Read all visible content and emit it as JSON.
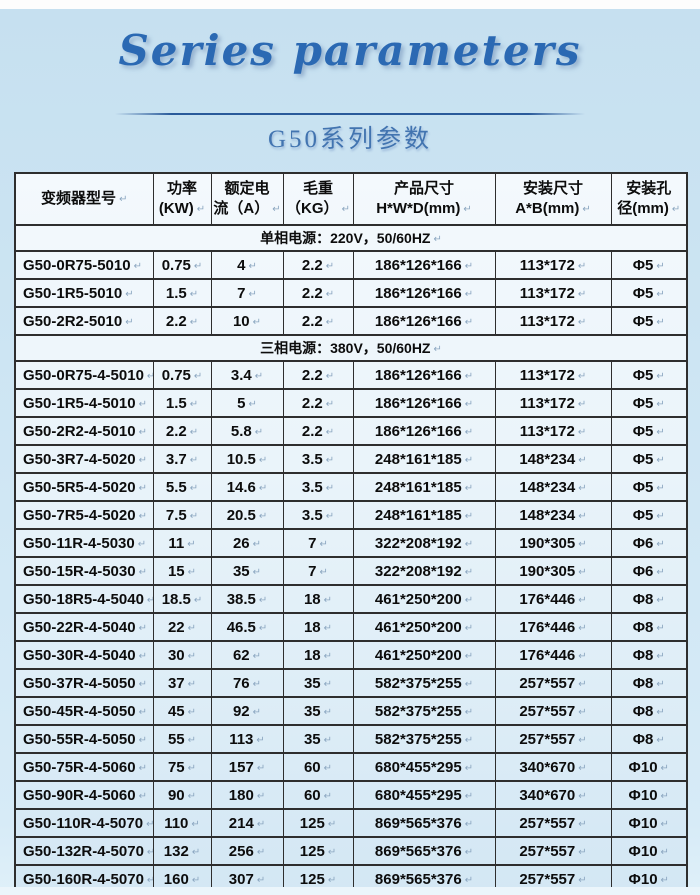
{
  "header": {
    "script_title": "Series parameters",
    "title": "G50系列参数"
  },
  "marks": {
    "return": "↵"
  },
  "colors": {
    "accent_blue": "#2b69b3",
    "title_blue": "#4274b0",
    "divider_blue": "#2a5a9a",
    "table_border": "#2e2e2e",
    "paragraph_mark": "#8ba6c0",
    "background_top": "#c6e0f0",
    "background_bottom": "#d7ebf7"
  },
  "table": {
    "columns": [
      {
        "line1": "变频器型号",
        "line2": ""
      },
      {
        "line1": "功率",
        "line2": "(KW)"
      },
      {
        "line1": "额定电",
        "line2": "流（A）"
      },
      {
        "line1": "毛重",
        "line2": "（KG）"
      },
      {
        "line1": "产品尺寸",
        "line2": "H*W*D(mm)"
      },
      {
        "line1": "安装尺寸",
        "line2": "A*B(mm)"
      },
      {
        "line1": "安装孔",
        "line2": "径(mm)"
      }
    ],
    "sections": [
      {
        "title": "单相电源：220V，50/60HZ",
        "rows": [
          [
            "G50-0R75-5010",
            "0.75",
            "4",
            "2.2",
            "186*126*166",
            "113*172",
            "Φ5"
          ],
          [
            "G50-1R5-5010",
            "1.5",
            "7",
            "2.2",
            "186*126*166",
            "113*172",
            "Φ5"
          ],
          [
            "G50-2R2-5010",
            "2.2",
            "10",
            "2.2",
            "186*126*166",
            "113*172",
            "Φ5"
          ]
        ]
      },
      {
        "title": "三相电源：380V，50/60HZ",
        "rows": [
          [
            "G50-0R75-4-5010",
            "0.75",
            "3.4",
            "2.2",
            "186*126*166",
            "113*172",
            "Φ5"
          ],
          [
            "G50-1R5-4-5010",
            "1.5",
            "5",
            "2.2",
            "186*126*166",
            "113*172",
            "Φ5"
          ],
          [
            "G50-2R2-4-5010",
            "2.2",
            "5.8",
            "2.2",
            "186*126*166",
            "113*172",
            "Φ5"
          ],
          [
            "G50-3R7-4-5020",
            "3.7",
            "10.5",
            "3.5",
            "248*161*185",
            "148*234",
            "Φ5"
          ],
          [
            "G50-5R5-4-5020",
            "5.5",
            "14.6",
            "3.5",
            "248*161*185",
            "148*234",
            "Φ5"
          ],
          [
            "G50-7R5-4-5020",
            "7.5",
            "20.5",
            "3.5",
            "248*161*185",
            "148*234",
            "Φ5"
          ],
          [
            "G50-11R-4-5030",
            "11",
            "26",
            "7",
            "322*208*192",
            "190*305",
            "Φ6"
          ],
          [
            "G50-15R-4-5030",
            "15",
            "35",
            "7",
            "322*208*192",
            "190*305",
            "Φ6"
          ],
          [
            "G50-18R5-4-5040",
            "18.5",
            "38.5",
            "18",
            "461*250*200",
            "176*446",
            "Φ8"
          ],
          [
            "G50-22R-4-5040",
            "22",
            "46.5",
            "18",
            "461*250*200",
            "176*446",
            "Φ8"
          ],
          [
            "G50-30R-4-5040",
            "30",
            "62",
            "18",
            "461*250*200",
            "176*446",
            "Φ8"
          ],
          [
            "G50-37R-4-5050",
            "37",
            "76",
            "35",
            "582*375*255",
            "257*557",
            "Φ8"
          ],
          [
            "G50-45R-4-5050",
            "45",
            "92",
            "35",
            "582*375*255",
            "257*557",
            "Φ8"
          ],
          [
            "G50-55R-4-5050",
            "55",
            "113",
            "35",
            "582*375*255",
            "257*557",
            "Φ8"
          ],
          [
            "G50-75R-4-5060",
            "75",
            "157",
            "60",
            "680*455*295",
            "340*670",
            "Φ10"
          ],
          [
            "G50-90R-4-5060",
            "90",
            "180",
            "60",
            "680*455*295",
            "340*670",
            "Φ10"
          ],
          [
            "G50-110R-4-5070",
            "110",
            "214",
            "125",
            "869*565*376",
            "257*557",
            "Φ10"
          ],
          [
            "G50-132R-4-5070",
            "132",
            "256",
            "125",
            "869*565*376",
            "257*557",
            "Φ10"
          ],
          [
            "G50-160R-4-5070",
            "160",
            "307",
            "125",
            "869*565*376",
            "257*557",
            "Φ10"
          ]
        ]
      }
    ]
  }
}
